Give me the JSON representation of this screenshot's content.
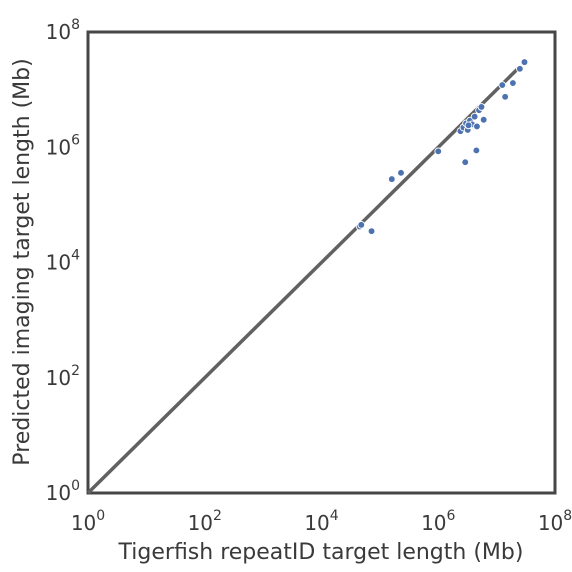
{
  "chart_data": {
    "type": "scatter",
    "xlabel": "Tigerfish repeatID target length (Mb)",
    "ylabel": "Predicted imaging target length (Mb)",
    "xscale": "log",
    "yscale": "log",
    "xlim": [
      1,
      100000000
    ],
    "ylim": [
      1,
      100000000
    ],
    "grid": false,
    "ticks": [
      {
        "value": 1,
        "base": "10",
        "exp": "0"
      },
      {
        "value": 100,
        "base": "10",
        "exp": "2"
      },
      {
        "value": 10000,
        "base": "10",
        "exp": "4"
      },
      {
        "value": 1000000,
        "base": "10",
        "exp": "6"
      },
      {
        "value": 100000000,
        "base": "10",
        "exp": "8"
      }
    ],
    "reference_line": {
      "from": [
        1,
        1
      ],
      "to": [
        25000000,
        25000000
      ],
      "color": "#616161"
    },
    "point_color": "#4c72b0",
    "points": [
      [
        45000,
        42000
      ],
      [
        48000,
        45000
      ],
      [
        72000,
        35000
      ],
      [
        160000,
        280000
      ],
      [
        230000,
        360000
      ],
      [
        1000000,
        850000
      ],
      [
        2400000,
        1900000
      ],
      [
        2700000,
        2200000
      ],
      [
        3000000,
        2600000
      ],
      [
        3200000,
        2000000
      ],
      [
        3500000,
        2900000
      ],
      [
        3800000,
        2500000
      ],
      [
        4200000,
        3400000
      ],
      [
        4600000,
        2300000
      ],
      [
        5000000,
        4400000
      ],
      [
        5500000,
        5000000
      ],
      [
        6000000,
        3000000
      ],
      [
        3300000,
        2400000
      ],
      [
        2900000,
        550000
      ],
      [
        4500000,
        880000
      ],
      [
        12500000,
        12000000
      ],
      [
        14000000,
        7500000
      ],
      [
        19000000,
        13000000
      ],
      [
        25000000,
        23000000
      ],
      [
        30000000,
        30000000
      ]
    ]
  }
}
